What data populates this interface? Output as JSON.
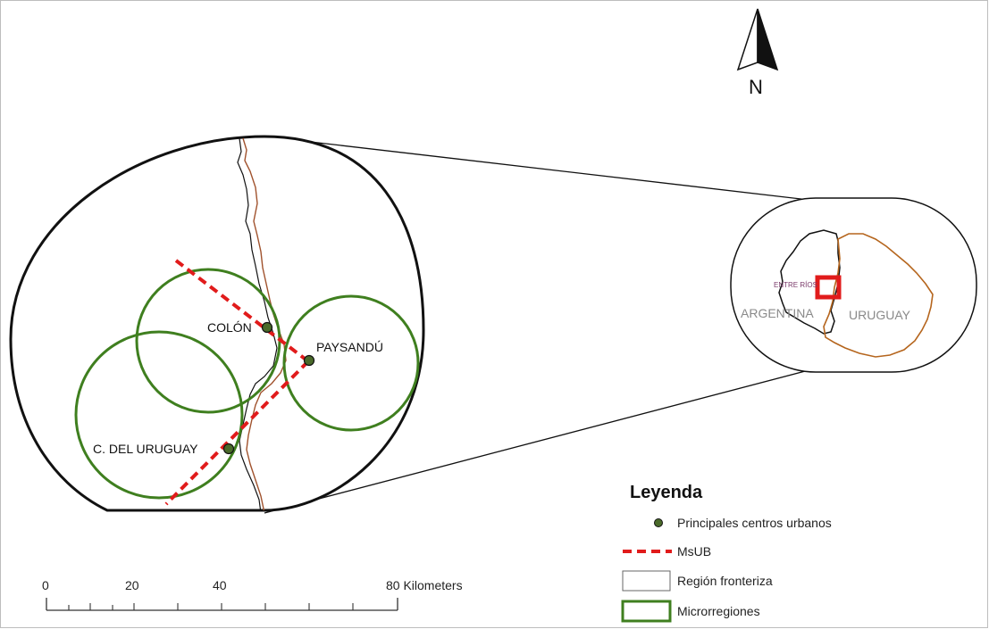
{
  "map": {
    "north_label": "N",
    "cities": [
      {
        "id": "colon",
        "label": "COLÓN"
      },
      {
        "id": "paysandu",
        "label": "PAYSANDÚ"
      },
      {
        "id": "c-del-uruguay",
        "label": "C. DEL URUGUAY"
      }
    ],
    "inset": {
      "province_label": "ENTRE RÍOS",
      "country_left": "ARGENTINA",
      "country_right": "URUGUAY"
    },
    "scale_bar": {
      "ticks": [
        "0",
        "20",
        "40",
        "80 Kilometers"
      ]
    },
    "legend": {
      "title": "Leyenda",
      "items": [
        {
          "label": "Principales centros urbanos",
          "symbol": "dark-green-dot"
        },
        {
          "label": "MsUB",
          "symbol": "red-dashed-line"
        },
        {
          "label": "Región fronteriza",
          "symbol": "white-box"
        },
        {
          "label": "Microrregiones",
          "symbol": "green-outline-box"
        }
      ]
    },
    "colors": {
      "microregion": "#3f7f1f",
      "msub": "#e11b1b",
      "city_dot": "#4a6a2a",
      "river": "#a0522d",
      "argentina_border": "#111111",
      "uruguay_border": "#b5651d",
      "highlight_box": "#e11b1b"
    }
  }
}
